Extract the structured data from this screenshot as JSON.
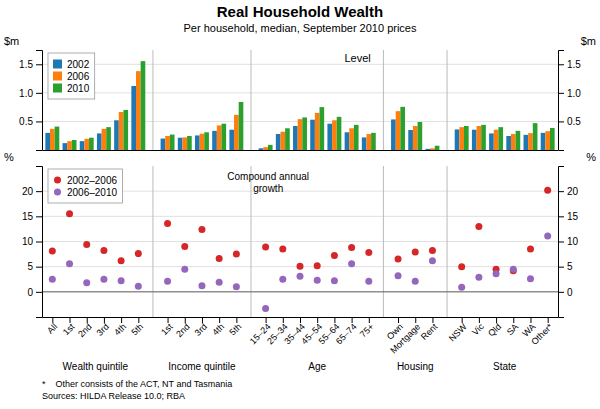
{
  "chart_data": [
    {
      "type": "bar",
      "title": "Real Household Wealth",
      "subtitle": "Per household, median, September 2010 prices",
      "annotation": "Level",
      "y_label": "$m",
      "ylim": [
        0,
        1.75
      ],
      "yticks": [
        0.5,
        {
          "value": 1.0,
          "label": "1.0"
        },
        1.5
      ],
      "grid": true,
      "legend": "top-left",
      "tick_labels": "y",
      "series": [
        {
          "name": "2002",
          "values": [
            0.3,
            0.12,
            0.155,
            0.29,
            0.52,
            1.12,
            0.2,
            0.215,
            0.255,
            0.335,
            0.355,
            0.03,
            0.28,
            0.42,
            0.53,
            0.46,
            0.31,
            0.22,
            0.535,
            0.35,
            0.02,
            0.36,
            0.355,
            0.29,
            0.245,
            0.265,
            0.3
          ]
        },
        {
          "name": "2006",
          "values": [
            0.37,
            0.155,
            0.195,
            0.37,
            0.665,
            1.38,
            0.245,
            0.22,
            0.285,
            0.43,
            0.615,
            0.05,
            0.32,
            0.54,
            0.65,
            0.52,
            0.38,
            0.28,
            0.68,
            0.42,
            0.03,
            0.4,
            0.42,
            0.355,
            0.28,
            0.295,
            0.33
          ]
        },
        {
          "name": "2010",
          "values": [
            0.41,
            0.175,
            0.215,
            0.4,
            0.7,
            1.555,
            0.27,
            0.245,
            0.31,
            0.46,
            0.84,
            0.09,
            0.38,
            0.57,
            0.75,
            0.58,
            0.44,
            0.3,
            0.755,
            0.49,
            0.075,
            0.42,
            0.44,
            0.4,
            0.335,
            0.47,
            0.385
          ]
        }
      ]
    },
    {
      "type": "scatter",
      "annotation": [
        "Compound annual",
        "growth"
      ],
      "y_label": "%",
      "ylim": [
        -5,
        25
      ],
      "yticks": [
        0,
        5,
        10,
        15,
        20
      ],
      "grid": true,
      "legend": "top-left",
      "sections": [
        {
          "label": "Wealth quintile",
          "categories": [
            "All",
            "1st",
            "2nd",
            "3rd",
            "4th",
            "5th"
          ]
        },
        {
          "label": "Income quintile",
          "categories": [
            "1st",
            "2nd",
            "3rd",
            "4th",
            "5th"
          ]
        },
        {
          "label": "Age",
          "categories": [
            "15–24",
            "25–34",
            "35–44",
            "45–54",
            "55–64",
            "65–74",
            "75+"
          ]
        },
        {
          "label": "Housing",
          "categories": [
            "Own",
            "Mortgage",
            "Rent"
          ]
        },
        {
          "label": "State",
          "categories": [
            "NSW",
            "Vic",
            "Qld",
            "SA",
            "WA",
            "Other*"
          ]
        }
      ],
      "series": [
        {
          "name": "2002–2006",
          "values": [
            8.1,
            15.5,
            9.4,
            8.2,
            6.2,
            7.6,
            13.6,
            9.0,
            12.4,
            6.6,
            7.5,
            8.9,
            8.5,
            5.1,
            5.2,
            7.2,
            8.8,
            7.8,
            6.5,
            7.9,
            8.2,
            5.0,
            13.0,
            4.5,
            4.2,
            8.5,
            20.2
          ]
        },
        {
          "name": "2006–2010",
          "values": [
            2.5,
            5.6,
            1.8,
            2.5,
            2.2,
            1.1,
            2.1,
            4.5,
            1.2,
            1.9,
            1.0,
            -3.3,
            2.5,
            3.1,
            2.3,
            2.2,
            5.6,
            2.1,
            3.2,
            2.1,
            6.2,
            0.9,
            2.9,
            3.6,
            4.5,
            2.6,
            11.1
          ]
        }
      ],
      "footnote": [
        "*    Other consists of the ACT, NT and Tasmania",
        "Sources: HILDA Release 10.0; RBA"
      ]
    }
  ]
}
